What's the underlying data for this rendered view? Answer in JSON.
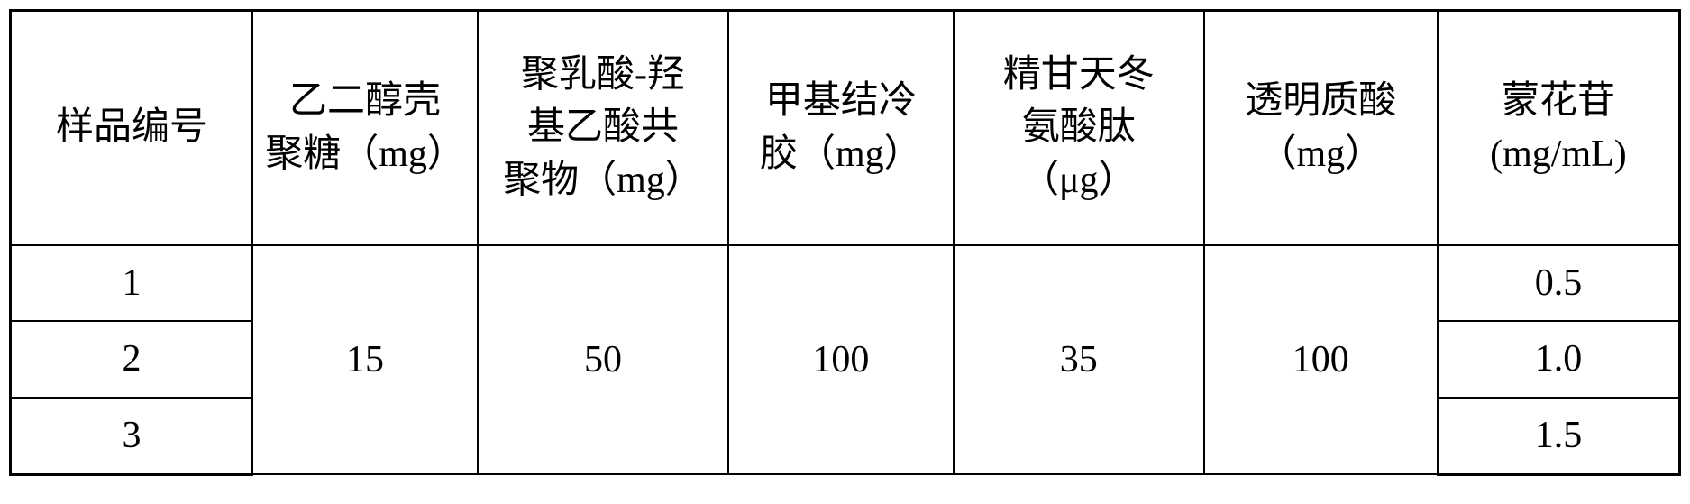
{
  "table": {
    "headers": {
      "col1": "样品编号",
      "col2_line1": "乙二醇壳",
      "col2_line2": "聚糖（mg）",
      "col3_line1": "聚乳酸-羟",
      "col3_line2": "基乙酸共",
      "col3_line3": "聚物（mg）",
      "col4_line1": "甲基结冷",
      "col4_line2": "胶（mg）",
      "col5_line1": "精甘天冬",
      "col5_line2": "氨酸肽",
      "col5_line3": "（μg）",
      "col6_line1": "透明质酸",
      "col6_line2": "（mg）",
      "col7_line1": "蒙花苷",
      "col7_line2": "(mg/mL)"
    },
    "merged_values": {
      "col2": "15",
      "col3": "50",
      "col4": "100",
      "col5": "35",
      "col6": "100"
    },
    "rows": {
      "row1": {
        "id": "1",
        "col7": "0.5"
      },
      "row2": {
        "id": "2",
        "col7": "1.0"
      },
      "row3": {
        "id": "3",
        "col7": "1.5"
      }
    },
    "styling": {
      "border_color": "#000000",
      "background_color": "#ffffff",
      "text_color": "#000000",
      "font_size": 42,
      "outer_border_width": 3,
      "inner_border_width": 2
    }
  }
}
